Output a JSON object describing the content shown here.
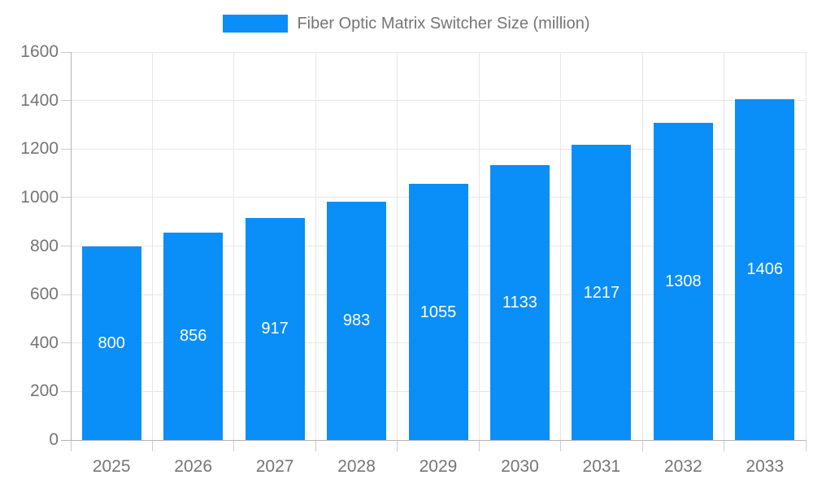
{
  "legend": {
    "label": "Fiber Optic Matrix Switcher Size (million)"
  },
  "chart_data": {
    "type": "bar",
    "title": "Fiber Optic Matrix Switcher Size (million)",
    "series_name": "Fiber Optic Matrix Switcher Size (million)",
    "categories": [
      "2025",
      "2026",
      "2027",
      "2028",
      "2029",
      "2030",
      "2031",
      "2032",
      "2033"
    ],
    "values": [
      800,
      856,
      917,
      983,
      1055,
      1133,
      1217,
      1308,
      1406
    ],
    "value_labels": [
      "800",
      "856",
      "917",
      "983",
      "1055",
      "1133",
      "1217",
      "1308",
      "1406"
    ],
    "xlabel": "",
    "ylabel": "",
    "ylim": [
      0,
      1600
    ],
    "ytick_step": 200,
    "y_tick_labels": [
      "0",
      "200",
      "400",
      "600",
      "800",
      "1000",
      "1200",
      "1400",
      "1600"
    ],
    "grid": true,
    "legend_position": "top",
    "colors": {
      "bar": "#0a8ef8",
      "value_label": "#ffffff",
      "axis_line": "#b3b3b3",
      "gridline": "#e6e6e6",
      "tick_line": "#cccccc",
      "tick_text": "#757575",
      "legend_text": "#757575",
      "background": "#ffffff"
    }
  }
}
